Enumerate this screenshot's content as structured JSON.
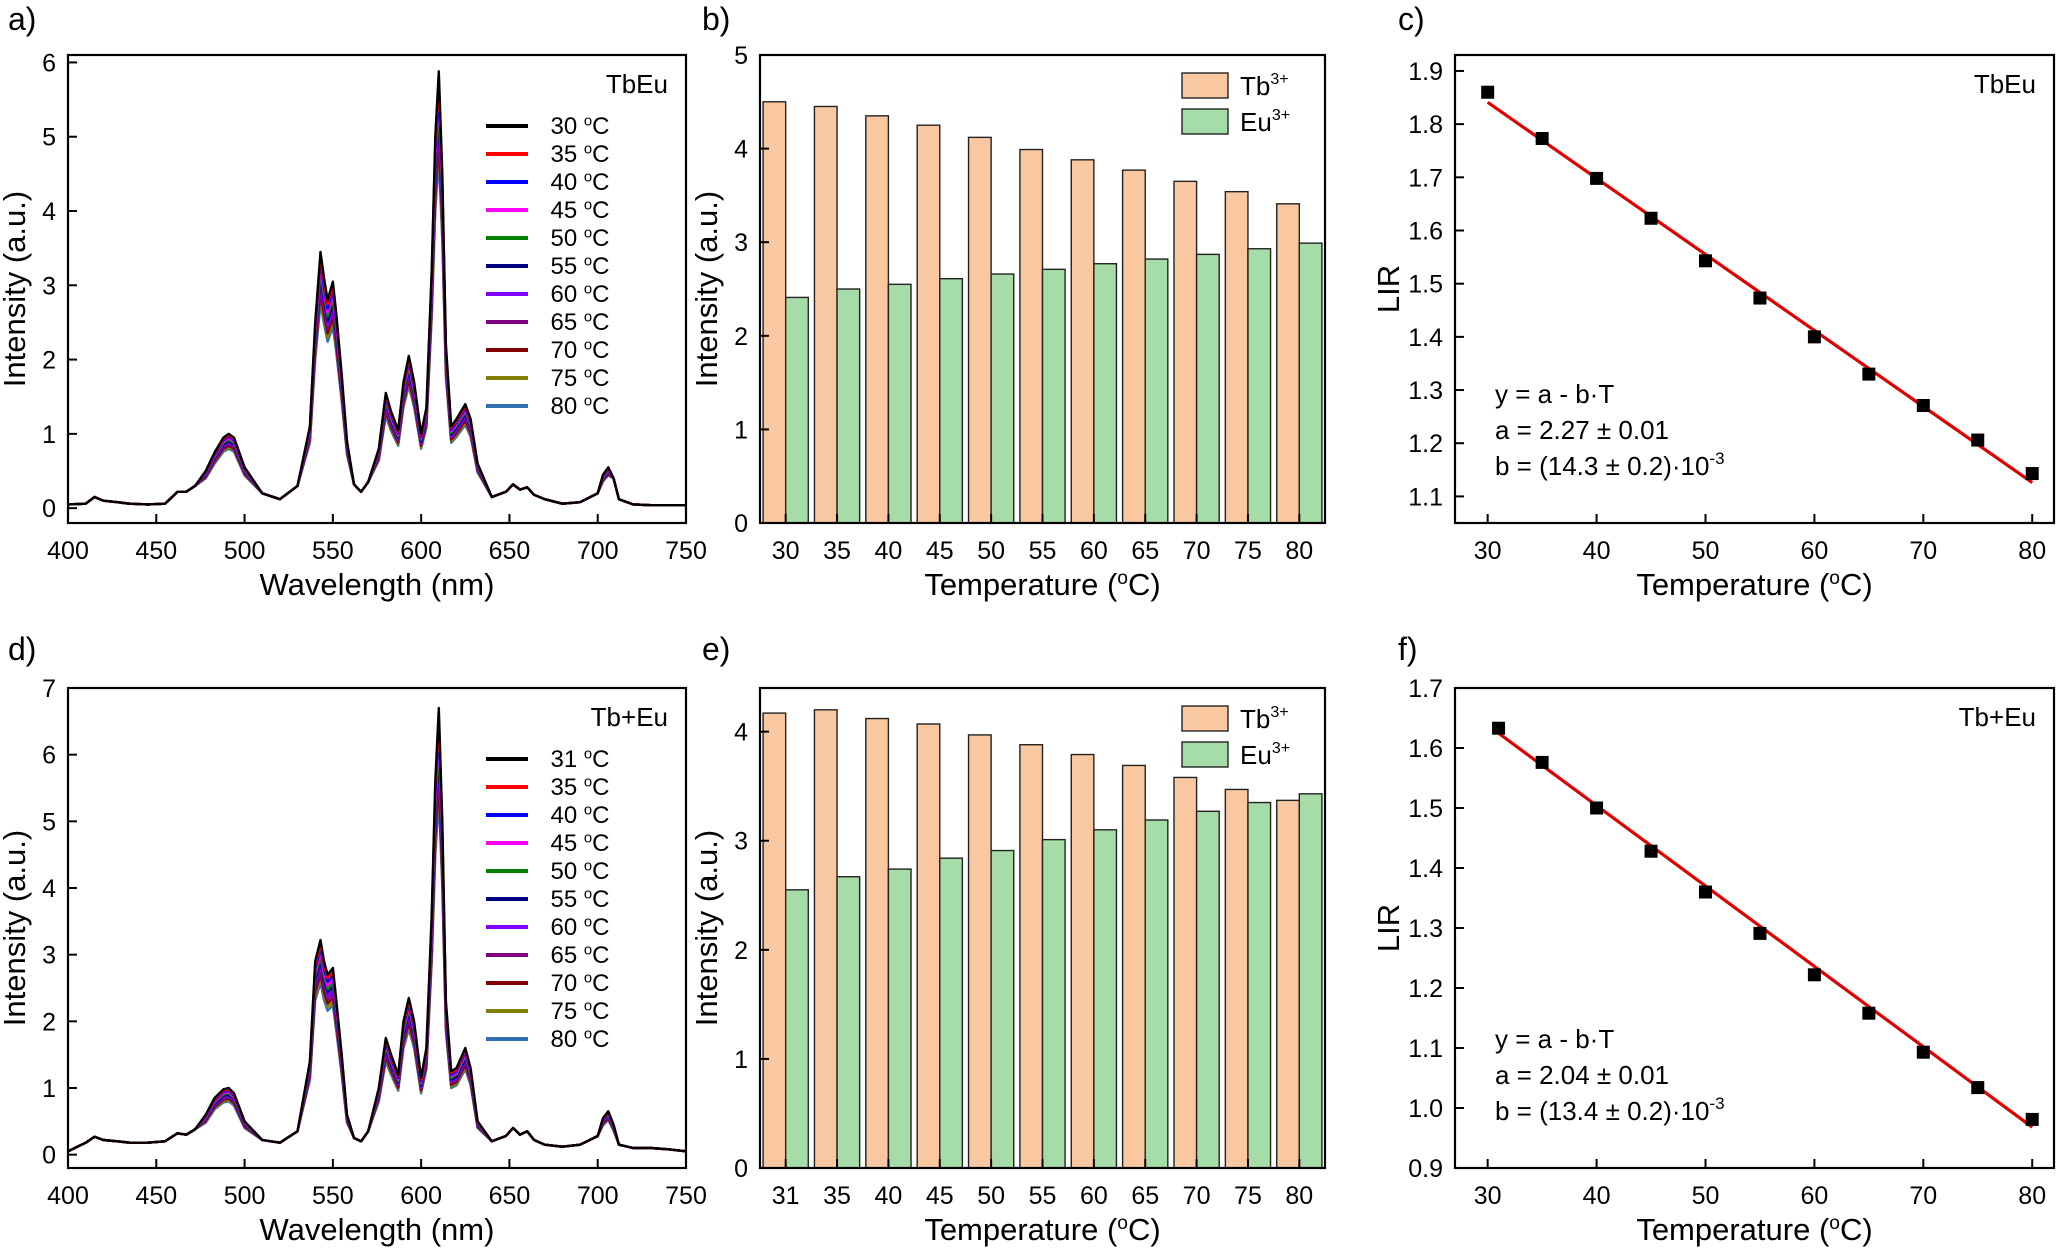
{
  "chart_data": [
    {
      "panel": "a)",
      "type": "line",
      "annotation": "TbEu",
      "xlabel": "Wavelength (nm)",
      "ylabel": "Intensity (a.u.)",
      "xlim": [
        400,
        750
      ],
      "ylim": [
        -0.2,
        6.1
      ],
      "xticks": [
        400,
        450,
        500,
        550,
        600,
        650,
        700,
        750
      ],
      "yticks": [
        0,
        1,
        2,
        3,
        4,
        5,
        6
      ],
      "grid": false,
      "legend_position": "top-right",
      "series_colors": [
        "#000000",
        "#ff0000",
        "#0000ff",
        "#ff00ff",
        "#008000",
        "#000080",
        "#8000ff",
        "#800080",
        "#800000",
        "#808000",
        "#3070b0"
      ],
      "series": [
        {
          "name": "30 °C",
          "peak_scale": 1.0,
          "x": [
            400,
            410,
            415,
            420,
            428,
            435,
            445,
            455,
            462,
            467,
            472,
            478,
            483,
            488,
            491,
            494,
            500,
            510,
            520,
            530,
            537,
            540,
            543,
            545,
            547,
            550,
            552,
            555,
            558,
            562,
            566,
            570,
            576,
            580,
            583,
            587,
            590,
            593,
            596,
            600,
            603,
            606,
            608,
            610,
            612,
            614,
            617,
            620,
            625,
            628,
            632,
            640,
            648,
            652,
            656,
            660,
            664,
            670,
            680,
            690,
            700,
            703,
            706,
            709,
            712,
            720,
            730,
            740,
            750
          ],
          "y": [
            0.05,
            0.06,
            0.15,
            0.1,
            0.08,
            0.06,
            0.05,
            0.06,
            0.22,
            0.22,
            0.3,
            0.5,
            0.75,
            0.95,
            1.0,
            0.95,
            0.55,
            0.2,
            0.12,
            0.3,
            1.1,
            2.5,
            3.45,
            3.1,
            2.8,
            3.05,
            2.6,
            1.8,
            0.9,
            0.32,
            0.22,
            0.35,
            0.8,
            1.55,
            1.3,
            1.05,
            1.7,
            2.05,
            1.7,
            1.0,
            1.35,
            3.2,
            5.0,
            5.88,
            4.5,
            2.2,
            1.1,
            1.2,
            1.4,
            1.2,
            0.6,
            0.15,
            0.22,
            0.32,
            0.25,
            0.28,
            0.18,
            0.12,
            0.06,
            0.08,
            0.2,
            0.45,
            0.55,
            0.4,
            0.12,
            0.05,
            0.04,
            0.04,
            0.04
          ]
        },
        {
          "name": "35 °C",
          "peak_scale": 0.98
        },
        {
          "name": "40 °C",
          "peak_scale": 0.96
        },
        {
          "name": "45 °C",
          "peak_scale": 0.94
        },
        {
          "name": "50 °C",
          "peak_scale": 0.92
        },
        {
          "name": "55 °C",
          "peak_scale": 0.9
        },
        {
          "name": "60 °C",
          "peak_scale": 0.88
        },
        {
          "name": "65 °C",
          "peak_scale": 0.86
        },
        {
          "name": "70 °C",
          "peak_scale": 0.84
        },
        {
          "name": "75 °C",
          "peak_scale": 0.82
        },
        {
          "name": "80 °C",
          "peak_scale": 0.8
        }
      ]
    },
    {
      "panel": "b)",
      "type": "bar",
      "xlabel": "Temperature (°C)",
      "ylabel": "Intensity (a.u.)",
      "ylim": [
        0,
        5
      ],
      "yticks": [
        0,
        1,
        2,
        3,
        4,
        5
      ],
      "categories": [
        "30",
        "35",
        "40",
        "45",
        "50",
        "55",
        "60",
        "65",
        "70",
        "75",
        "80"
      ],
      "legend_position": "top-right",
      "series": [
        {
          "name": "Tb",
          "sup": "3+",
          "color": "#fac8a0",
          "values": [
            4.5,
            4.45,
            4.35,
            4.25,
            4.12,
            3.99,
            3.88,
            3.77,
            3.65,
            3.54,
            3.41
          ]
        },
        {
          "name": "Eu",
          "sup": "3+",
          "color": "#a6dca8",
          "values": [
            2.41,
            2.5,
            2.55,
            2.61,
            2.66,
            2.71,
            2.77,
            2.82,
            2.87,
            2.93,
            2.99
          ]
        }
      ]
    },
    {
      "panel": "c)",
      "type": "scatter",
      "annotation": "TbEu",
      "xlabel": "Temperature (°C)",
      "ylabel": "LIR",
      "xlim": [
        27,
        82
      ],
      "ylim": [
        1.05,
        1.93
      ],
      "xticks": [
        30,
        40,
        50,
        60,
        70,
        80
      ],
      "yticks": [
        1.1,
        1.2,
        1.3,
        1.4,
        1.5,
        1.6,
        1.7,
        1.8,
        1.9
      ],
      "ytick_labels": [
        "1.1",
        "1.2",
        "1.3",
        "1.4",
        "1.5",
        "1.6",
        "1.7",
        "1.8",
        "1.9"
      ],
      "x": [
        30,
        35,
        40,
        45,
        50,
        55,
        60,
        65,
        70,
        75,
        80
      ],
      "y": [
        1.86,
        1.773,
        1.698,
        1.623,
        1.543,
        1.473,
        1.4,
        1.33,
        1.271,
        1.206,
        1.143
      ],
      "fit": {
        "a": 2.27,
        "b": 0.0143,
        "x_range": [
          30,
          80
        ],
        "color": "#e00000"
      },
      "equation": [
        "y = a - b·T",
        "a = 2.27 ± 0.01",
        "b = (14.3 ± 0.2)·10"
      ],
      "equation_sup": "-3"
    },
    {
      "panel": "d)",
      "type": "line",
      "annotation": "Tb+Eu",
      "xlabel": "Wavelength (nm)",
      "ylabel": "Intensity (a.u.)",
      "xlim": [
        400,
        750
      ],
      "ylim": [
        -0.2,
        7.0
      ],
      "xticks": [
        400,
        450,
        500,
        550,
        600,
        650,
        700,
        750
      ],
      "yticks": [
        0,
        1,
        2,
        3,
        4,
        5,
        6,
        7
      ],
      "grid": false,
      "legend_position": "top-right",
      "series_colors": [
        "#000000",
        "#ff0000",
        "#0000ff",
        "#ff00ff",
        "#008000",
        "#000080",
        "#8000ff",
        "#800080",
        "#800000",
        "#808000",
        "#3070b0"
      ],
      "series": [
        {
          "name": "31 °C",
          "peak_scale": 1.0,
          "x": [
            400,
            410,
            415,
            420,
            428,
            435,
            445,
            455,
            462,
            467,
            472,
            478,
            483,
            488,
            491,
            494,
            500,
            510,
            520,
            530,
            537,
            540,
            543,
            545,
            547,
            550,
            552,
            555,
            558,
            562,
            566,
            570,
            576,
            580,
            583,
            587,
            590,
            593,
            596,
            600,
            603,
            606,
            608,
            610,
            612,
            614,
            617,
            620,
            625,
            628,
            632,
            640,
            648,
            652,
            656,
            660,
            664,
            670,
            680,
            690,
            700,
            703,
            706,
            709,
            712,
            720,
            730,
            740,
            750
          ],
          "y": [
            0.05,
            0.18,
            0.27,
            0.22,
            0.2,
            0.18,
            0.18,
            0.2,
            0.32,
            0.3,
            0.38,
            0.6,
            0.85,
            0.98,
            1.0,
            0.92,
            0.5,
            0.22,
            0.18,
            0.35,
            1.4,
            2.9,
            3.22,
            2.9,
            2.7,
            2.8,
            2.3,
            1.5,
            0.6,
            0.25,
            0.2,
            0.35,
            1.0,
            1.75,
            1.5,
            1.2,
            2.0,
            2.35,
            2.0,
            1.15,
            1.6,
            3.6,
            5.6,
            6.7,
            5.0,
            2.3,
            1.25,
            1.3,
            1.6,
            1.3,
            0.5,
            0.2,
            0.28,
            0.4,
            0.3,
            0.35,
            0.22,
            0.15,
            0.12,
            0.15,
            0.28,
            0.55,
            0.65,
            0.45,
            0.15,
            0.1,
            0.1,
            0.08,
            0.05
          ]
        },
        {
          "name": "35 °C",
          "peak_scale": 0.98
        },
        {
          "name": "40 °C",
          "peak_scale": 0.96
        },
        {
          "name": "45 °C",
          "peak_scale": 0.94
        },
        {
          "name": "50 °C",
          "peak_scale": 0.92
        },
        {
          "name": "55 °C",
          "peak_scale": 0.9
        },
        {
          "name": "60 °C",
          "peak_scale": 0.88
        },
        {
          "name": "65 °C",
          "peak_scale": 0.86
        },
        {
          "name": "70 °C",
          "peak_scale": 0.84
        },
        {
          "name": "75 °C",
          "peak_scale": 0.82
        },
        {
          "name": "80 °C",
          "peak_scale": 0.8
        }
      ]
    },
    {
      "panel": "e)",
      "type": "bar",
      "xlabel": "Temperature (°C)",
      "ylabel": "Intensity (a.u.)",
      "ylim": [
        0,
        4.4
      ],
      "yticks": [
        0,
        1,
        2,
        3,
        4
      ],
      "categories": [
        "31",
        "35",
        "40",
        "45",
        "50",
        "55",
        "60",
        "65",
        "70",
        "75",
        "80"
      ],
      "legend_position": "top-right",
      "series": [
        {
          "name": "Tb",
          "sup": "3+",
          "color": "#fac8a0",
          "values": [
            4.17,
            4.2,
            4.12,
            4.07,
            3.97,
            3.88,
            3.79,
            3.69,
            3.58,
            3.47,
            3.37
          ]
        },
        {
          "name": "Eu",
          "sup": "3+",
          "color": "#a6dca8",
          "values": [
            2.55,
            2.67,
            2.74,
            2.84,
            2.91,
            3.01,
            3.1,
            3.19,
            3.27,
            3.35,
            3.43
          ]
        }
      ]
    },
    {
      "panel": "f)",
      "type": "scatter",
      "annotation": "Tb+Eu",
      "xlabel": "Temperature (°C)",
      "ylabel": "LIR",
      "xlim": [
        27,
        82
      ],
      "ylim": [
        0.9,
        1.7
      ],
      "xticks": [
        30,
        40,
        50,
        60,
        70,
        80
      ],
      "yticks": [
        0.9,
        1.0,
        1.1,
        1.2,
        1.3,
        1.4,
        1.5,
        1.6,
        1.7
      ],
      "ytick_labels": [
        "0.9",
        "1.0",
        "1.1",
        "1.2",
        "1.3",
        "1.4",
        "1.5",
        "1.6",
        "1.7"
      ],
      "x": [
        31,
        35,
        40,
        45,
        50,
        55,
        60,
        65,
        70,
        75,
        80
      ],
      "y": [
        1.633,
        1.576,
        1.5,
        1.428,
        1.36,
        1.291,
        1.222,
        1.158,
        1.093,
        1.034,
        0.981
      ],
      "fit": {
        "a": 2.04,
        "b": 0.0134,
        "x_range": [
          31,
          80
        ],
        "color": "#e00000"
      },
      "equation": [
        "y = a - b·T",
        "a = 2.04 ± 0.01",
        "b = (13.4 ± 0.2)·10"
      ],
      "equation_sup": "-3"
    }
  ]
}
